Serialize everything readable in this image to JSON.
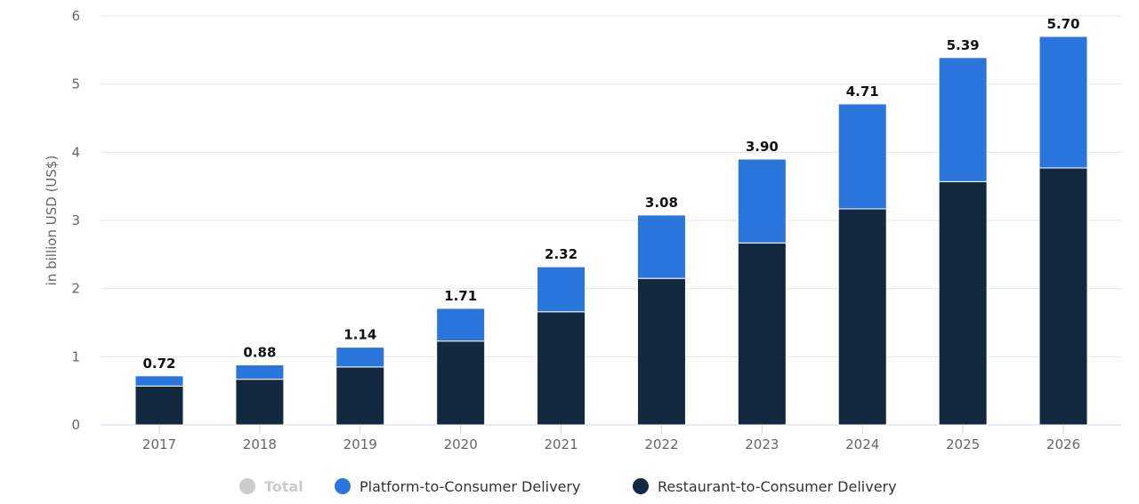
{
  "chart_data": {
    "type": "bar",
    "stacked": true,
    "title": "",
    "xlabel": "",
    "ylabel": "in billion USD (US$)",
    "ylim": [
      0,
      6
    ],
    "yticks": [
      0,
      1,
      2,
      3,
      4,
      5,
      6
    ],
    "grid": true,
    "legend_position": "bottom",
    "categories": [
      "2017",
      "2018",
      "2019",
      "2020",
      "2021",
      "2022",
      "2023",
      "2024",
      "2025",
      "2026"
    ],
    "series": [
      {
        "name": "Restaurant-to-Consumer Delivery",
        "color": "#12283f",
        "values": [
          0.57,
          0.67,
          0.85,
          1.23,
          1.66,
          2.15,
          2.67,
          3.17,
          3.57,
          3.77
        ]
      },
      {
        "name": "Platform-to-Consumer Delivery",
        "color": "#2a76dc",
        "values": [
          0.15,
          0.21,
          0.29,
          0.48,
          0.66,
          0.93,
          1.23,
          1.54,
          1.82,
          1.93
        ]
      }
    ],
    "totals": [
      "0.72",
      "0.88",
      "1.14",
      "1.71",
      "2.32",
      "3.08",
      "3.90",
      "4.71",
      "5.39",
      "5.70"
    ],
    "legend": [
      {
        "name": "Total",
        "color": "#cccccc",
        "disabled": true
      },
      {
        "name": "Platform-to-Consumer Delivery",
        "color": "#2a76dc"
      },
      {
        "name": "Restaurant-to-Consumer Delivery",
        "color": "#12283f"
      }
    ]
  }
}
